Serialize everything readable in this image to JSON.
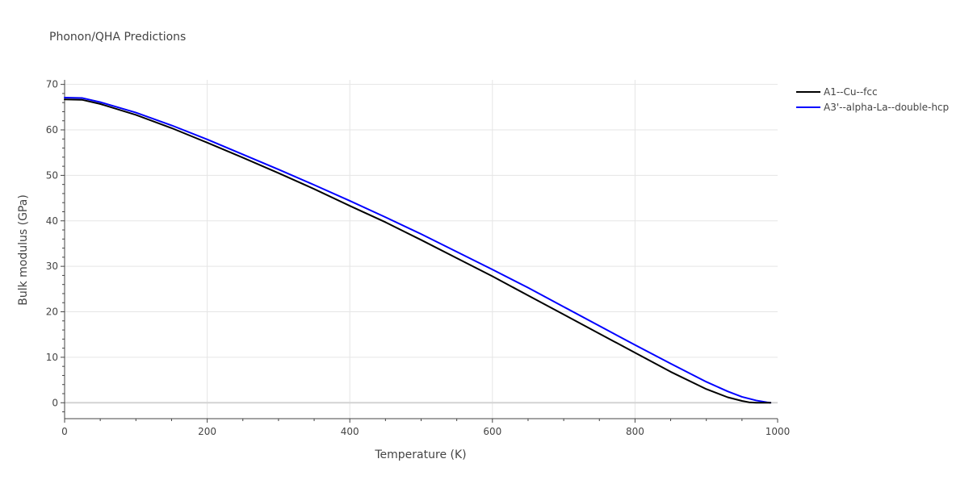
{
  "chart_data": {
    "type": "line",
    "title": "Phonon/QHA Predictions",
    "xlabel": "Temperature (K)",
    "ylabel": "Bulk modulus (GPa)",
    "xlim": [
      0,
      1000
    ],
    "ylim": [
      -3.5,
      71
    ],
    "x_ticks": [
      0,
      200,
      400,
      600,
      800,
      1000
    ],
    "y_ticks": [
      0,
      10,
      20,
      30,
      40,
      50,
      60,
      70
    ],
    "x_tick_labels": [
      "0",
      "200",
      "400",
      "600",
      "800",
      "1000"
    ],
    "y_tick_labels": [
      "0",
      "10",
      "20",
      "30",
      "40",
      "50",
      "60",
      "70"
    ],
    "grid": true,
    "legend_position": "top-right-outside",
    "series": [
      {
        "name": "A1--Cu--fcc",
        "color": "#000000",
        "x": [
          0,
          25,
          50,
          100,
          150,
          200,
          250,
          300,
          350,
          400,
          450,
          500,
          550,
          600,
          650,
          700,
          750,
          800,
          850,
          900,
          930,
          950,
          960,
          970,
          980,
          990
        ],
        "y": [
          66.7,
          66.6,
          65.7,
          63.3,
          60.4,
          57.2,
          53.9,
          50.5,
          47.0,
          43.3,
          39.7,
          35.8,
          31.8,
          27.8,
          23.6,
          19.4,
          15.2,
          11.0,
          6.8,
          3.0,
          1.2,
          0.4,
          0.1,
          0.0,
          0.0,
          0.0
        ]
      },
      {
        "name": "A3'--alpha-La--double-hcp",
        "color": "#0000ff",
        "x": [
          0,
          25,
          50,
          100,
          150,
          200,
          250,
          300,
          350,
          400,
          450,
          500,
          550,
          600,
          650,
          700,
          750,
          800,
          850,
          900,
          930,
          950,
          970,
          985,
          990
        ],
        "y": [
          67.1,
          67.0,
          66.1,
          63.8,
          61.0,
          57.9,
          54.6,
          51.3,
          47.9,
          44.4,
          40.8,
          37.1,
          33.2,
          29.3,
          25.3,
          21.1,
          16.9,
          12.7,
          8.6,
          4.6,
          2.5,
          1.3,
          0.5,
          0.1,
          0.0
        ]
      }
    ]
  }
}
